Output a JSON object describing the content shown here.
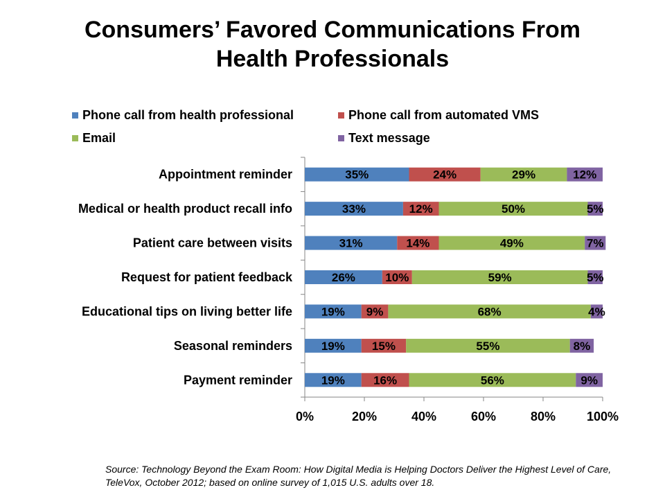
{
  "chart_data": {
    "type": "bar",
    "orientation": "horizontal",
    "stacked": true,
    "title": "Consumers’ Favored Communications From Health Professionals",
    "title_lines": [
      "Consumers’ Favored Communications From",
      "Health Professionals"
    ],
    "categories": [
      "Appointment reminder",
      "Medical or health product recall info",
      "Patient care between visits",
      "Request for patient feedback",
      "Educational tips on living better life",
      "Seasonal reminders",
      "Payment reminder"
    ],
    "series": [
      {
        "name": "Phone call from health professional",
        "color": "#4F81BD",
        "values": [
          35,
          33,
          31,
          26,
          19,
          19,
          19
        ]
      },
      {
        "name": "Phone call from automated VMS",
        "color": "#C0504D",
        "values": [
          24,
          12,
          14,
          10,
          9,
          15,
          16
        ]
      },
      {
        "name": "Email",
        "color": "#9BBB59",
        "values": [
          29,
          50,
          49,
          59,
          68,
          55,
          56
        ]
      },
      {
        "name": "Text message",
        "color": "#8064A2",
        "values": [
          12,
          5,
          7,
          5,
          4,
          8,
          9
        ]
      }
    ],
    "xlim": [
      0,
      100
    ],
    "xticks": [
      "0%",
      "20%",
      "40%",
      "60%",
      "80%",
      "100%"
    ],
    "legend_position": "top",
    "grid": false
  },
  "source": "Source: Technology Beyond the Exam Room: How Digital Media is Helping Doctors Deliver the Highest Level of Care, TeleVox, October 2012; based on online survey of 1,015 U.S. adults over 18."
}
